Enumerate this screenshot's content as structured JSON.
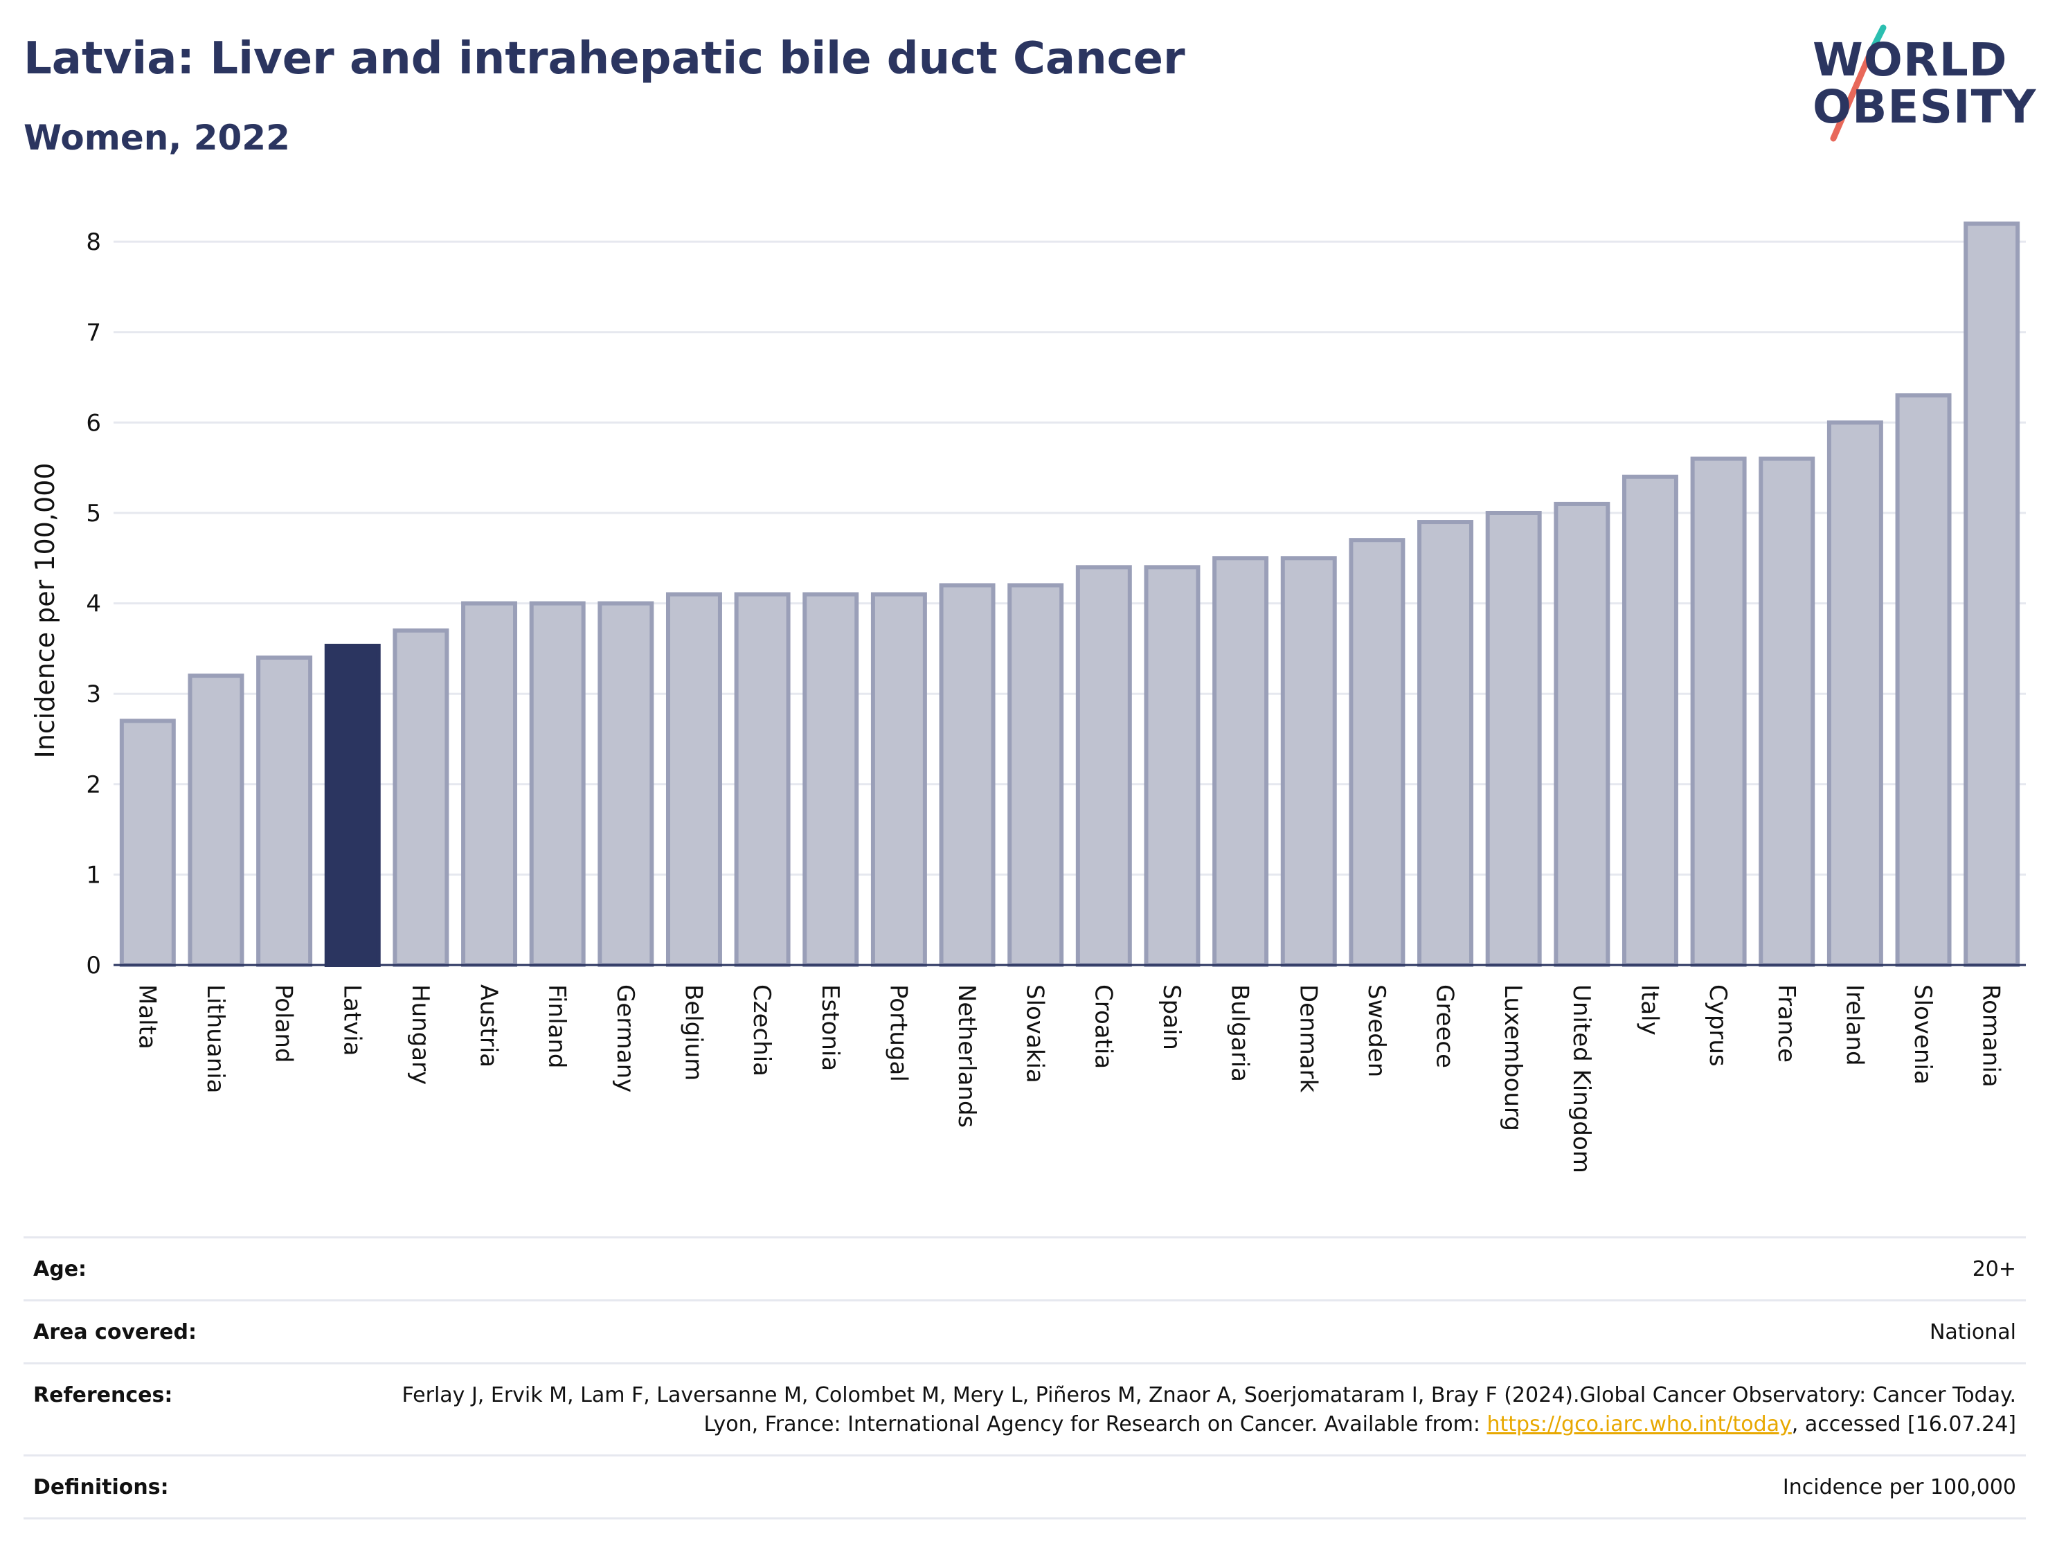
{
  "title": "Latvia: Liver and intrahepatic bile duct Cancer",
  "subtitle": "Women, 2022",
  "logo": {
    "line1": "WORLD",
    "line2": "OBESITY",
    "accent_colors": [
      "#2bbfb0",
      "#e8685a"
    ]
  },
  "colors": {
    "highlight": "#2b3560",
    "bar": "#bfc2d0",
    "bar_border": "#9a9fb8",
    "text": "#2b3560"
  },
  "chart_data": {
    "type": "bar",
    "categories": [
      "Malta",
      "Lithuania",
      "Poland",
      "Latvia",
      "Hungary",
      "Austria",
      "Finland",
      "Germany",
      "Belgium",
      "Czechia",
      "Estonia",
      "Portugal",
      "Netherlands",
      "Slovakia",
      "Croatia",
      "Spain",
      "Bulgaria",
      "Denmark",
      "Sweden",
      "Greece",
      "Luxembourg",
      "United Kingdom",
      "Italy",
      "Cyprus",
      "France",
      "Ireland",
      "Slovenia",
      "Romania"
    ],
    "values": [
      2.7,
      3.2,
      3.4,
      3.53,
      3.7,
      4.0,
      4.0,
      4.0,
      4.1,
      4.1,
      4.1,
      4.1,
      4.2,
      4.2,
      4.4,
      4.4,
      4.5,
      4.5,
      4.7,
      4.9,
      5.0,
      5.1,
      5.4,
      5.6,
      5.6,
      6.0,
      6.3,
      8.2
    ],
    "highlight": "Latvia",
    "ylabel": "Incidence per 100,000",
    "xlabel": "",
    "ylim": [
      0,
      8.3
    ],
    "yticks": [
      0,
      1,
      2,
      3,
      4,
      5,
      6,
      7,
      8
    ],
    "grid": true
  },
  "meta": [
    {
      "label": "Age:",
      "value": "20+"
    },
    {
      "label": "Area covered:",
      "value": "National"
    },
    {
      "label": "References:",
      "value_before": "Ferlay J, Ervik M, Lam F, Laversanne M, Colombet M, Mery L, Piñeros M, Znaor A, Soerjomataram I, Bray F (2024).Global Cancer Observatory: Cancer Today. Lyon, France: International Agency for Research on Cancer. Available from: ",
      "link": "https://gco.iarc.who.int/today",
      "value_after": ", accessed [16.07.24]"
    },
    {
      "label": "Definitions:",
      "value": "Incidence per 100,000"
    }
  ]
}
